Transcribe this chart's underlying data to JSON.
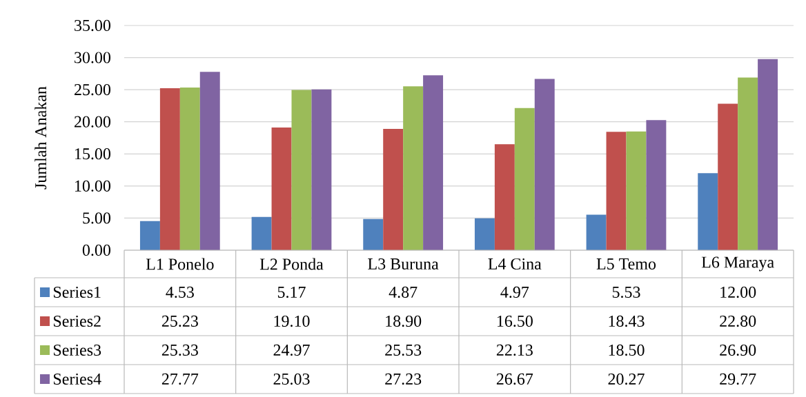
{
  "chart_data": {
    "type": "bar",
    "ylabel": "Jumlah Anakan",
    "categories": [
      "L1 Ponelo",
      "L2 Ponda",
      "L3 Buruna",
      "L4 Cina",
      "L5 Temo",
      "L6 Maraya"
    ],
    "series": [
      {
        "name": "Series1",
        "color": "#4f81bd",
        "values": [
          4.53,
          5.17,
          4.87,
          4.97,
          5.53,
          12.0
        ],
        "value_labels": [
          "4.53",
          "5.17",
          "4.87",
          "4.97",
          "5.53",
          "12.00"
        ]
      },
      {
        "name": "Series2",
        "color": "#c0504d",
        "values": [
          25.23,
          19.1,
          18.9,
          16.5,
          18.43,
          22.8
        ],
        "value_labels": [
          "25.23",
          "19.10",
          "18.90",
          "16.50",
          "18.43",
          "22.80"
        ]
      },
      {
        "name": "Series3",
        "color": "#9bbb59",
        "values": [
          25.33,
          24.97,
          25.53,
          22.13,
          18.5,
          26.9
        ],
        "value_labels": [
          "25.33",
          "24.97",
          "25.53",
          "22.13",
          "18.50",
          "26.90"
        ]
      },
      {
        "name": "Series4",
        "color": "#8064a2",
        "values": [
          27.77,
          25.03,
          27.23,
          26.67,
          20.27,
          29.77
        ],
        "value_labels": [
          "27.77",
          "25.03",
          "27.23",
          "26.67",
          "20.27",
          "29.77"
        ]
      }
    ],
    "ylim": [
      0,
      35
    ],
    "yticks": [
      {
        "value": 0,
        "label": "0.00"
      },
      {
        "value": 5,
        "label": "5.00"
      },
      {
        "value": 10,
        "label": "10.00"
      },
      {
        "value": 15,
        "label": "15.00"
      },
      {
        "value": 20,
        "label": "20.00"
      },
      {
        "value": 25,
        "label": "25.00"
      },
      {
        "value": 30,
        "label": "30.00"
      },
      {
        "value": 35,
        "label": "35.00"
      }
    ],
    "grid": "y",
    "legend": "bottom"
  }
}
